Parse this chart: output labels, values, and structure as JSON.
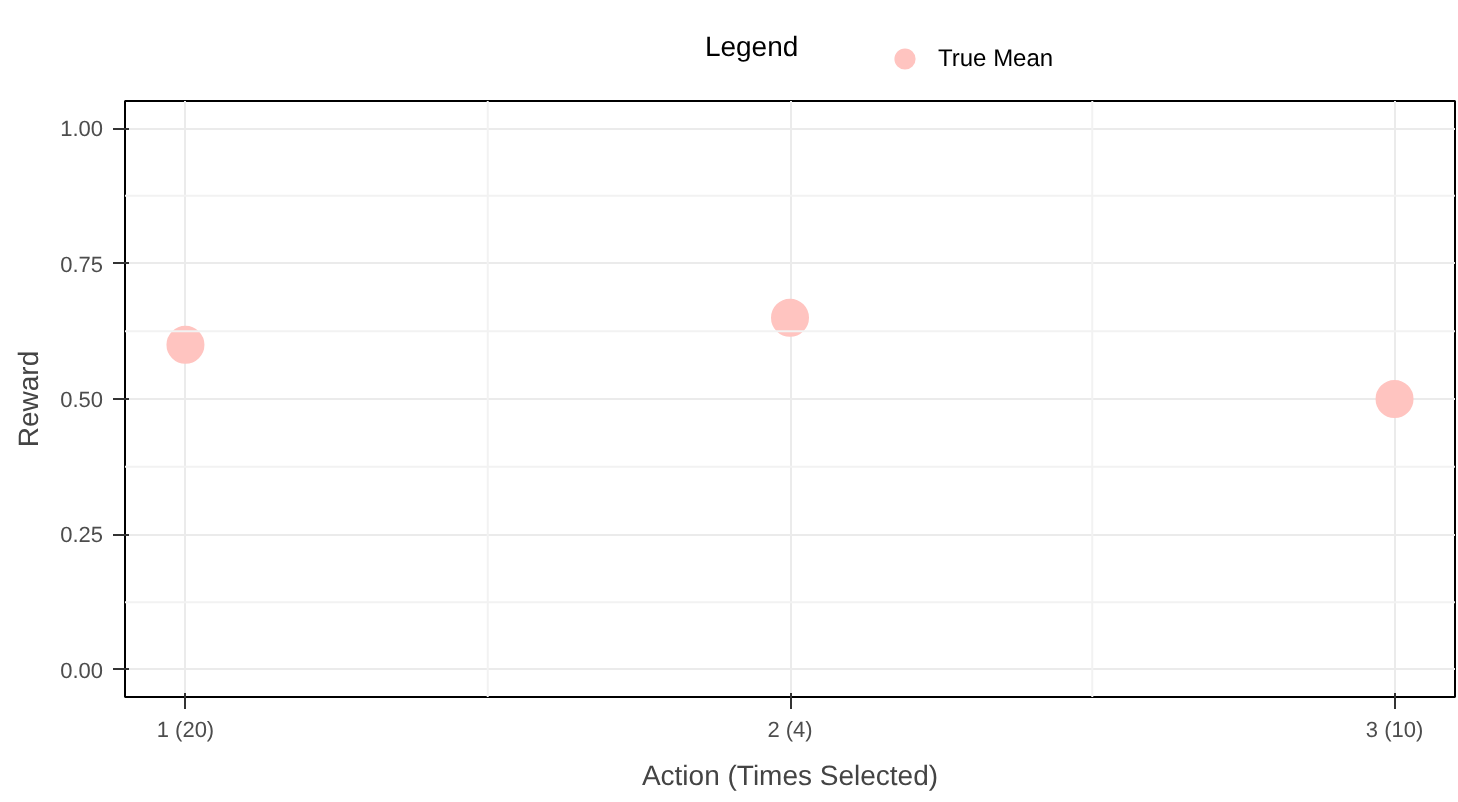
{
  "chart_data": {
    "type": "scatter",
    "xlabel": "Action (Times Selected)",
    "ylabel": "Reward",
    "legend_title": "Legend",
    "categories": [
      "1 (20)",
      "2 (4)",
      "3 (10)"
    ],
    "series": [
      {
        "name": "True Mean",
        "color": "#ffc4c0",
        "values": [
          0.6,
          0.65,
          0.5
        ]
      }
    ],
    "ylim": [
      -0.05,
      1.05
    ],
    "yticks": [
      {
        "value": 0,
        "label": "0.00"
      },
      {
        "value": 0.25,
        "label": "0.25"
      },
      {
        "value": 0.5,
        "label": "0.50"
      },
      {
        "value": 0.75,
        "label": "0.75"
      },
      {
        "value": 1,
        "label": "1.00"
      }
    ],
    "grid": true,
    "legend": "top",
    "marker": "circle"
  }
}
